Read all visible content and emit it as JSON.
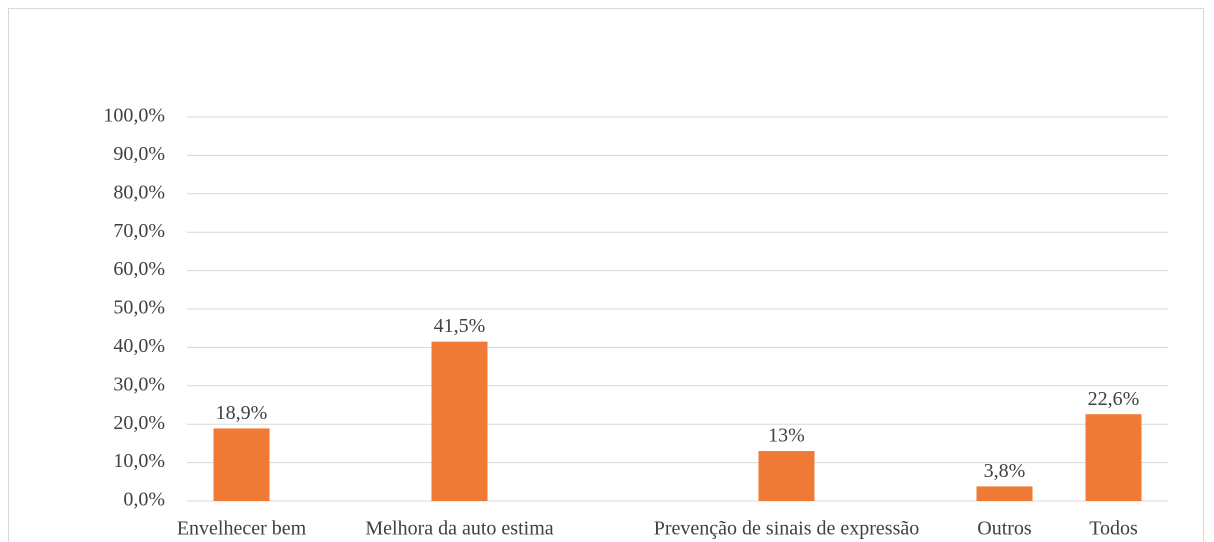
{
  "chart_data": {
    "type": "bar",
    "categories": [
      "Envelhecer bem",
      null,
      "Melhora da auto estima",
      null,
      null,
      "Prevenção de sinais de expressão",
      null,
      "Outros",
      "Todos"
    ],
    "values": [
      18.9,
      null,
      41.5,
      null,
      null,
      13,
      null,
      3.8,
      22.6
    ],
    "value_labels": [
      "18,9%",
      null,
      "41,5%",
      null,
      null,
      "13%",
      null,
      "3,8%",
      "22,6%"
    ],
    "color": "#ee7a35",
    "ylim": [
      0,
      100
    ],
    "yticks": [
      {
        "value": 0,
        "label": "0,0%"
      },
      {
        "value": 10,
        "label": "10,0%"
      },
      {
        "value": 20,
        "label": "20,0%"
      },
      {
        "value": 30,
        "label": "30,0%"
      },
      {
        "value": 40,
        "label": "40,0%"
      },
      {
        "value": 50,
        "label": "50,0%"
      },
      {
        "value": 60,
        "label": "60,0%"
      },
      {
        "value": 70,
        "label": "70,0%"
      },
      {
        "value": 80,
        "label": "80,0%"
      },
      {
        "value": 90,
        "label": "90,0%"
      },
      {
        "value": 100,
        "label": "100,0%"
      }
    ],
    "grid": true
  }
}
